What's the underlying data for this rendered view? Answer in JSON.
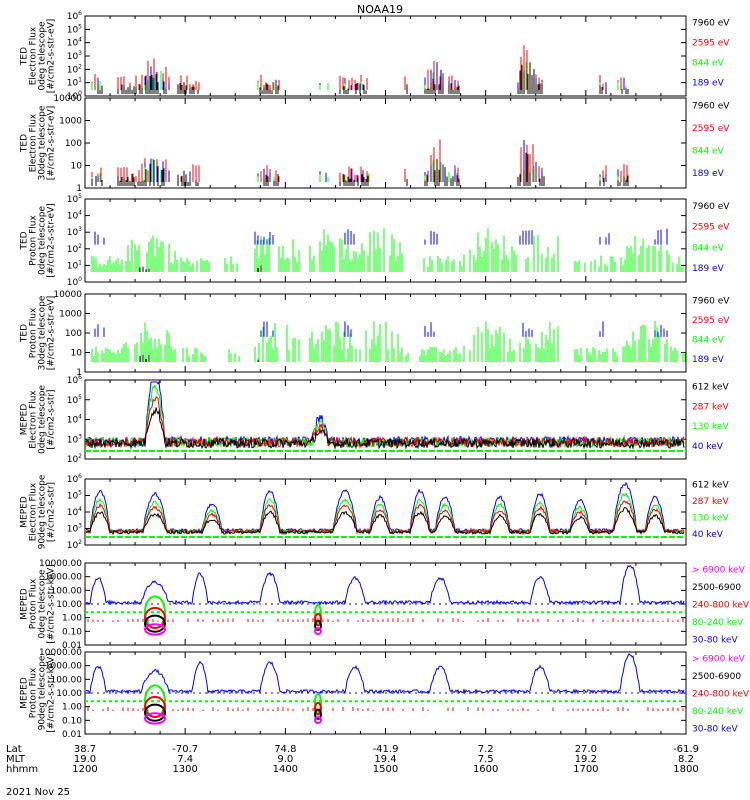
{
  "title": "NOAA19",
  "footer_date": "2021 Nov 25",
  "colors": {
    "black": "#000000",
    "red": "#ff0000",
    "green": "#00ff00",
    "blue": "#0000ff",
    "magenta": "#ff00ff"
  },
  "xaxis": {
    "row_labels": [
      "Lat",
      "MLT",
      "hhmm"
    ],
    "columns": [
      {
        "lat": "38.7",
        "mlt": "19.0",
        "hhmm": "1200"
      },
      {
        "lat": "-70.7",
        "mlt": "7.4",
        "hhmm": "1300"
      },
      {
        "lat": "74.8",
        "mlt": "9.0",
        "hhmm": "1400"
      },
      {
        "lat": "-41.9",
        "mlt": "19.4",
        "hhmm": "1500"
      },
      {
        "lat": "7.2",
        "mlt": "7.5",
        "hhmm": "1600"
      },
      {
        "lat": "27.0",
        "mlt": "19.2",
        "hhmm": "1700"
      },
      {
        "lat": "-61.9",
        "mlt": "8.2",
        "hhmm": "1800"
      }
    ]
  },
  "chart_data": [
    {
      "type": "line",
      "log_y": true,
      "ylim": [
        1,
        1000000
      ],
      "ylabel": [
        "TED",
        "Electron Flux",
        "0deg telescope",
        "[#/cm2-s-str-eV]"
      ],
      "yticks": [
        "10^0",
        "10^1",
        "10^2",
        "10^3",
        "10^4",
        "10^5",
        "10^6"
      ],
      "legend": [
        {
          "label": "7960 eV",
          "color": "#000000"
        },
        {
          "label": "2595 eV",
          "color": "#ff0000"
        },
        {
          "label": "844 eV",
          "color": "#00ff00"
        },
        {
          "label": "189 eV",
          "color": "#0000ff"
        }
      ]
    },
    {
      "type": "line",
      "log_y": true,
      "ylim": [
        1,
        10000
      ],
      "ylabel": [
        "TED",
        "Electron Flux",
        "30deg telescope",
        "[#/cm2-s-str-eV]"
      ],
      "yticks": [
        "1",
        "10",
        "100",
        "1000",
        "10000"
      ],
      "legend": [
        {
          "label": "7960 eV",
          "color": "#000000"
        },
        {
          "label": "2595 eV",
          "color": "#ff0000"
        },
        {
          "label": "844 eV",
          "color": "#00ff00"
        },
        {
          "label": "189 eV",
          "color": "#0000ff"
        }
      ]
    },
    {
      "type": "line",
      "log_y": true,
      "ylim": [
        1,
        100000
      ],
      "ylabel": [
        "TED",
        "Proton Flux",
        "0deg telescope",
        "[#/cm2-s-str-eV]"
      ],
      "yticks": [
        "10^0",
        "10^1",
        "10^2",
        "10^3",
        "10^4",
        "10^5"
      ],
      "legend": [
        {
          "label": "7960 eV",
          "color": "#000000"
        },
        {
          "label": "2595 eV",
          "color": "#ff0000"
        },
        {
          "label": "844 eV",
          "color": "#00ff00"
        },
        {
          "label": "189 eV",
          "color": "#0000ff"
        }
      ]
    },
    {
      "type": "line",
      "log_y": true,
      "ylim": [
        1,
        10000
      ],
      "ylabel": [
        "TED",
        "Proton Flux",
        "30deg telescope",
        "[#/cm2-s-str-eV]"
      ],
      "yticks": [
        "1",
        "10",
        "100",
        "1000",
        "10000"
      ],
      "legend": [
        {
          "label": "7960 eV",
          "color": "#000000"
        },
        {
          "label": "2595 eV",
          "color": "#ff0000"
        },
        {
          "label": "844 eV",
          "color": "#00ff00"
        },
        {
          "label": "189 eV",
          "color": "#0000ff"
        }
      ]
    },
    {
      "type": "line",
      "log_y": true,
      "ylim": [
        100,
        1000000
      ],
      "ylabel": [
        "MEPED",
        "Electron Flux",
        "0deg telescope",
        "[#/cm2-s-str]"
      ],
      "yticks": [
        "10^2",
        "10^3",
        "10^4",
        "10^5",
        "10^6"
      ],
      "legend": [
        {
          "label": "612 keV",
          "color": "#000000"
        },
        {
          "label": "287 keV",
          "color": "#ff0000"
        },
        {
          "label": "130 keV",
          "color": "#00ff00"
        },
        {
          "label": "40 keV",
          "color": "#0000ff"
        }
      ]
    },
    {
      "type": "line",
      "log_y": true,
      "ylim": [
        100,
        1000000
      ],
      "ylabel": [
        "MEPED",
        "Electron Flux",
        "90deg telescope",
        "[#/cm2-s-str]"
      ],
      "yticks": [
        "10^2",
        "10^3",
        "10^4",
        "10^5",
        "10^6"
      ],
      "legend": [
        {
          "label": "612 keV",
          "color": "#000000"
        },
        {
          "label": "287 keV",
          "color": "#ff0000"
        },
        {
          "label": "130 keV",
          "color": "#00ff00"
        },
        {
          "label": "40 keV",
          "color": "#0000ff"
        }
      ]
    },
    {
      "type": "line",
      "log_y": true,
      "ylim": [
        0.01,
        10000
      ],
      "ylabel": [
        "MEPED",
        "Proton Flux",
        "0deg telescope",
        "[#/cm2-s-str-keV]"
      ],
      "yticks": [
        "0.01",
        "0.10",
        "1.00",
        "10.00",
        "100.00",
        "1000.00",
        "10000.00"
      ],
      "legend": [
        {
          "label": "> 6900 keV",
          "color": "#ff00ff"
        },
        {
          "label": "2500-6900",
          "color": "#000000"
        },
        {
          "label": "240-800 keV",
          "color": "#ff0000"
        },
        {
          "label": "80-240 keV",
          "color": "#00ff00"
        },
        {
          "label": "30-80 keV",
          "color": "#0000ff"
        }
      ]
    },
    {
      "type": "line",
      "log_y": true,
      "ylim": [
        0.01,
        10000
      ],
      "ylabel": [
        "MEPED",
        "Proton Flux",
        "90deg telescope",
        "[#/cm2-s-str-keV]"
      ],
      "yticks": [
        "0.01",
        "0.10",
        "1.00",
        "10.00",
        "100.00",
        "1000.00",
        "10000.00"
      ],
      "legend": [
        {
          "label": "> 6900 keV",
          "color": "#ff00ff"
        },
        {
          "label": "2500-6900",
          "color": "#000000"
        },
        {
          "label": "240-800 keV",
          "color": "#ff0000"
        },
        {
          "label": "80-240 keV",
          "color": "#00ff00"
        },
        {
          "label": "30-80 keV",
          "color": "#0000ff"
        }
      ]
    }
  ]
}
